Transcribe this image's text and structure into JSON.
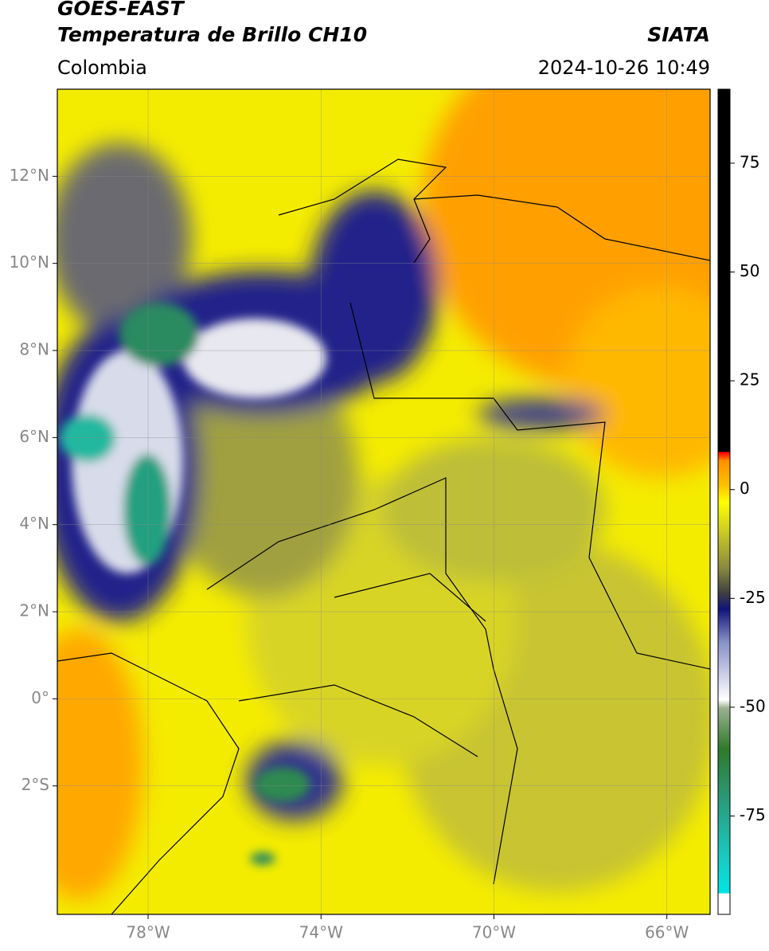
{
  "header": {
    "title": "GOES-EAST",
    "subtitle": "Temperatura de Brillo CH10",
    "source": "SIATA",
    "region": "Colombia",
    "datetime": "2024-10-26 10:49"
  },
  "map": {
    "xlim": [
      -80.1,
      -65
    ],
    "ylim": [
      -4.95,
      14
    ],
    "xticks": [
      {
        "value": -78,
        "label": "78°W"
      },
      {
        "value": -74,
        "label": "74°W"
      },
      {
        "value": -70,
        "label": "70°W"
      },
      {
        "value": -66,
        "label": "66°W"
      }
    ],
    "yticks": [
      {
        "value": 12,
        "label": "12°N"
      },
      {
        "value": 10,
        "label": "10°N"
      },
      {
        "value": 8,
        "label": "8°N"
      },
      {
        "value": 6,
        "label": "6°N"
      },
      {
        "value": 4,
        "label": "4°N"
      },
      {
        "value": 2,
        "label": "2°N"
      },
      {
        "value": 0,
        "label": "0°"
      },
      {
        "value": -2,
        "label": "2°S"
      }
    ],
    "grid": true
  },
  "colorbar": {
    "lim": [
      -97.6,
      92
    ],
    "ticks": [
      75,
      50,
      25,
      0,
      -25,
      -50,
      -75
    ]
  }
}
